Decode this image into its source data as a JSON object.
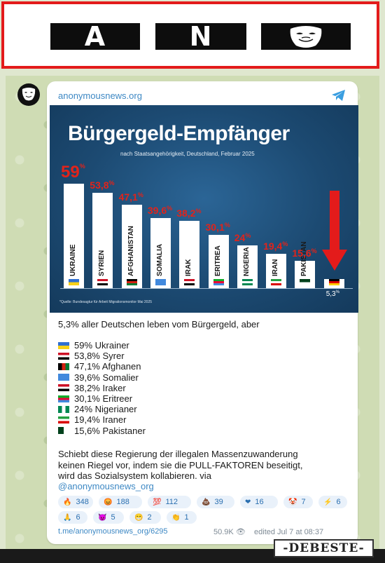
{
  "banner": {
    "letters": [
      "A",
      "N"
    ]
  },
  "post": {
    "channel": "anonymousnews.org",
    "infographic": {
      "title": "Bürgergeld-Empfänger",
      "subtitle": "nach Staatsangehörigkeit, Deutschland, Februar 2025",
      "source": "*Quelle: Bundesagtur für Arbeit Migrationsmonitor Mai 2025"
    },
    "intro": "5,3% aller Deutschen leben vom Bürgergeld, aber",
    "list": [
      "59% Ukrainer",
      "53,8% Syrer",
      "47,1% Afghanen",
      "39,6% Somalier",
      "38,2% Iraker",
      "30,1% Eritreer",
      "24% Nigerianer",
      "19,4% Iraner",
      "15,6% Pakistaner"
    ],
    "paragraph": [
      "Schiebt diese Regierung der illegalen Massenzuwanderung",
      "keinen Riegel vor, indem sie die PULL-FAKTOREN beseitigt,",
      "wird das Sozialsystem kollabieren. via"
    ],
    "mention": "@anonymousnews_org",
    "reactions": [
      {
        "icon": "fire-icon",
        "count": "348"
      },
      {
        "icon": "angry-face-icon",
        "count": "188"
      },
      {
        "icon": "hundred-icon",
        "count": "112"
      },
      {
        "icon": "poop-icon",
        "count": "39"
      },
      {
        "icon": "heart-icon",
        "count": "16"
      },
      {
        "icon": "clown-icon",
        "count": "7"
      },
      {
        "icon": "lightning-icon",
        "count": "6"
      },
      {
        "icon": "pray-icon",
        "count": "6"
      },
      {
        "icon": "devil-icon",
        "count": "5"
      },
      {
        "icon": "grin-icon",
        "count": "2"
      },
      {
        "icon": "clap-icon",
        "count": "1"
      }
    ],
    "footer": {
      "link": "t.me/anonymousnews_org/6295",
      "views": "50.9K",
      "edited": "edited  Jul 7 at 08:37"
    }
  },
  "watermark": "-DEBESTE-",
  "chart_data": {
    "type": "bar",
    "categories": [
      "UKRAINE",
      "SYRIEN",
      "AFGHANISTAN",
      "SOMALIA",
      "IRAK",
      "ERITREA",
      "NIGERIA",
      "IRAN",
      "PAKISTAN",
      "DEUTSCHLAND"
    ],
    "values": [
      59,
      53.8,
      47.1,
      39.6,
      38.2,
      30.1,
      24,
      19.4,
      15.6,
      5.3
    ],
    "value_labels": [
      "59",
      "53,8",
      "47,1",
      "39,6",
      "38,2",
      "30,1",
      "24",
      "19,4",
      "15,6",
      "5,3"
    ],
    "unit": "%",
    "ylim": [
      0,
      60
    ],
    "colors": {
      "bar": "#ffffff",
      "label": "#e2231a",
      "background": "#1f4f78",
      "arrow": "#e31b1b"
    }
  }
}
